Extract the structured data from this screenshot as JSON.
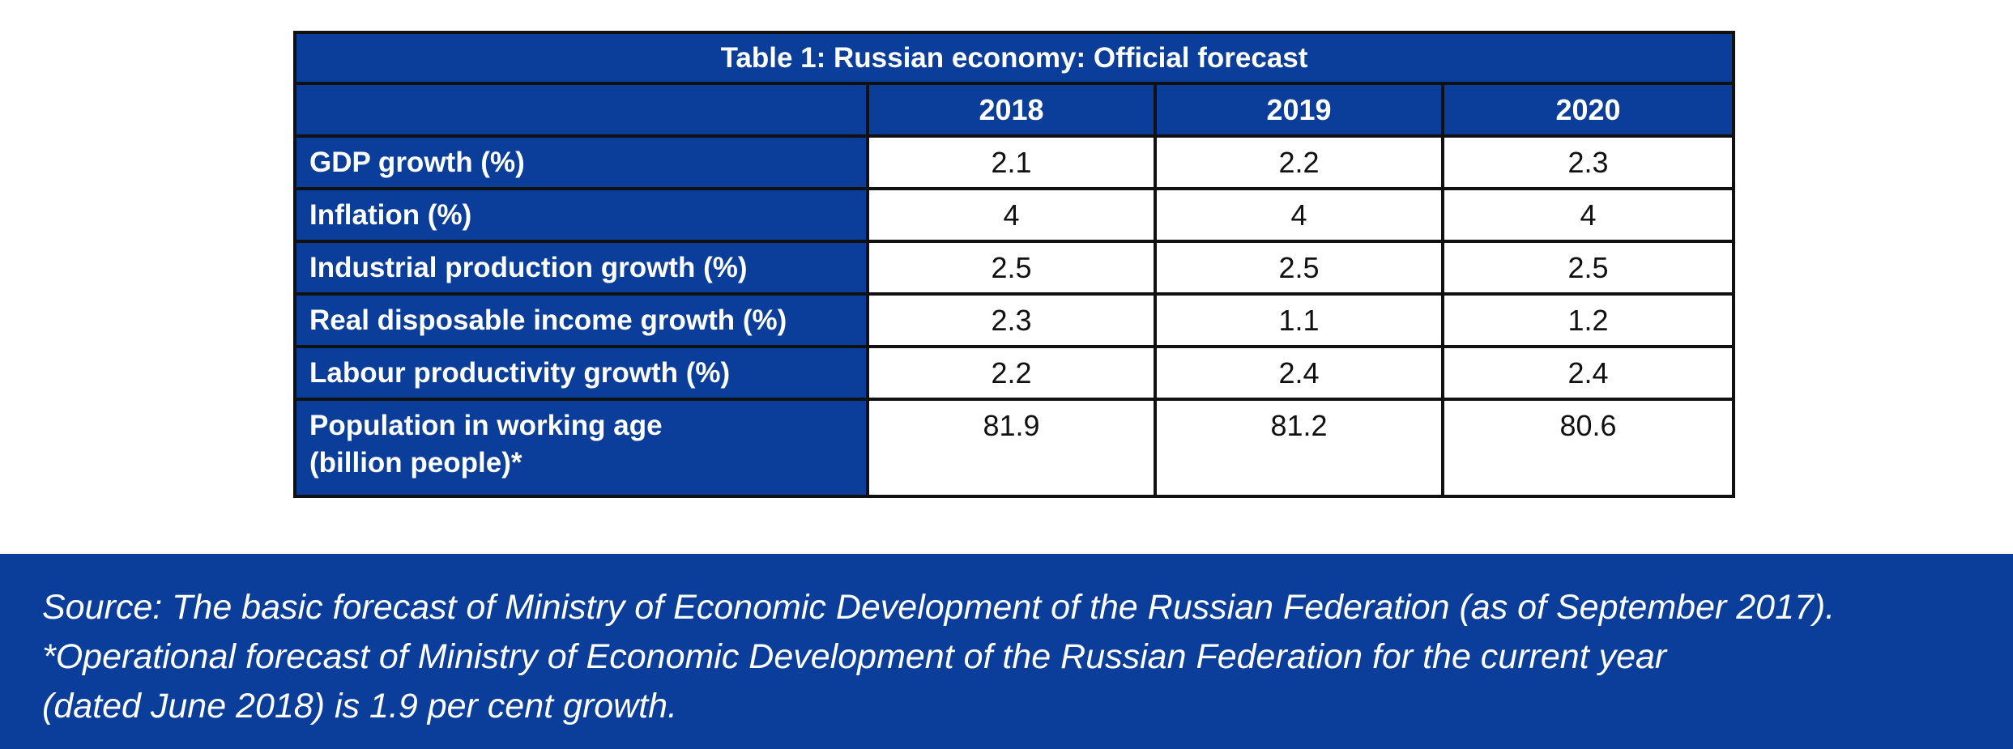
{
  "table": {
    "caption": "Table 1: Russian economy: Official forecast",
    "years": [
      "2018",
      "2019",
      "2020"
    ],
    "rows": [
      {
        "label": "GDP growth (%)",
        "values": [
          "2.1",
          "2.2",
          "2.3"
        ]
      },
      {
        "label": "Inflation (%)",
        "values": [
          "4",
          "4",
          "4"
        ]
      },
      {
        "label": "Industrial production growth (%)",
        "values": [
          "2.5",
          "2.5",
          "2.5"
        ]
      },
      {
        "label": "Real disposable income growth (%)",
        "values": [
          "2.3",
          "1.1",
          "1.2"
        ]
      },
      {
        "label": "Labour productivity growth (%)",
        "values": [
          "2.2",
          "2.4",
          "2.4"
        ]
      },
      {
        "label_line1": "Population in working age",
        "label_line2": "(billion people)*",
        "values": [
          "81.9",
          "81.2",
          "80.6"
        ]
      }
    ]
  },
  "footer": {
    "line1": "Source: The basic forecast of Ministry of Economic Development of the Russian Federation (as of September 2017).",
    "line2": "*Operational forecast of Ministry of Economic Development of the Russian Federation for the current year",
    "line3": "(dated June 2018) is 1.9 per cent growth."
  },
  "colors": {
    "header_blue": "#0b3e9a",
    "border": "#111111",
    "cell_bg": "#ffffff"
  }
}
